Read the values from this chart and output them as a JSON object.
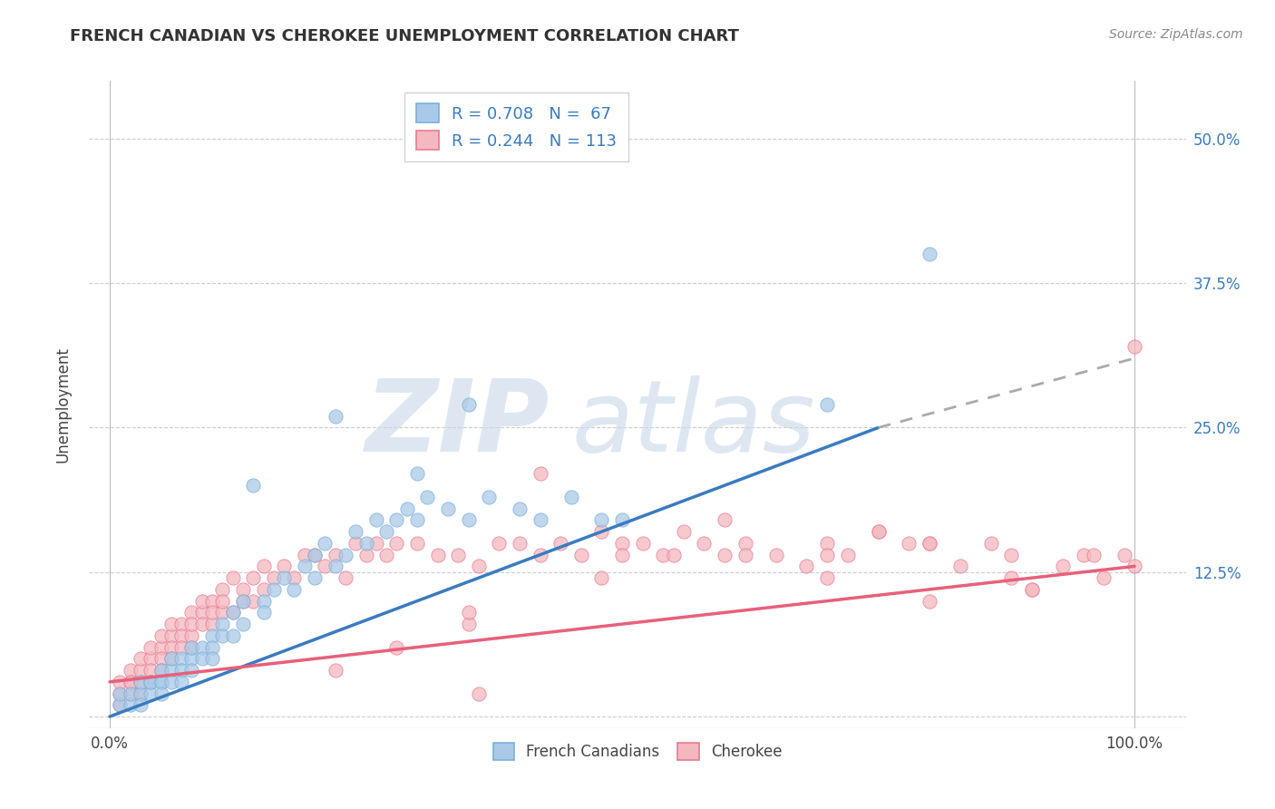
{
  "title": "FRENCH CANADIAN VS CHEROKEE UNEMPLOYMENT CORRELATION CHART",
  "source_text": "Source: ZipAtlas.com",
  "ylabel": "Unemployment",
  "xlim": [
    -2,
    105
  ],
  "ylim": [
    -1,
    55
  ],
  "x_tick_positions": [
    0,
    100
  ],
  "x_tick_labels": [
    "0.0%",
    "100.0%"
  ],
  "y_tick_positions": [
    0,
    12.5,
    25.0,
    37.5,
    50.0
  ],
  "y_tick_labels": [
    "",
    "12.5%",
    "25.0%",
    "37.5%",
    "50.0%"
  ],
  "blue_dot_color": "#aac9e8",
  "blue_dot_edge": "#7ab0d8",
  "pink_dot_color": "#f4b8c0",
  "pink_dot_edge": "#e87a90",
  "blue_line_color": "#3a7bbf",
  "pink_line_color": "#e8607a",
  "dashed_line_color": "#aaaaaa",
  "legend_R_blue": "R = 0.708",
  "legend_N_blue": "N =  67",
  "legend_R_pink": "R = 0.244",
  "legend_N_pink": "N = 113",
  "blue_line_x0": 0,
  "blue_line_y0": 0,
  "blue_line_x1": 75,
  "blue_line_y1": 25,
  "blue_dash_x0": 75,
  "blue_dash_y0": 25,
  "blue_dash_x1": 100,
  "blue_dash_y1": 31,
  "pink_line_x0": 0,
  "pink_line_y0": 3,
  "pink_line_x1": 100,
  "pink_line_y1": 13,
  "blue_scatter_x": [
    1,
    1,
    2,
    2,
    3,
    3,
    3,
    4,
    4,
    4,
    5,
    5,
    5,
    5,
    6,
    6,
    6,
    7,
    7,
    7,
    8,
    8,
    8,
    9,
    9,
    10,
    10,
    10,
    11,
    11,
    12,
    12,
    13,
    13,
    14,
    15,
    15,
    16,
    17,
    18,
    19,
    20,
    20,
    21,
    22,
    23,
    24,
    25,
    26,
    27,
    28,
    29,
    30,
    31,
    33,
    35,
    37,
    40,
    42,
    45,
    48,
    22,
    30,
    35,
    50,
    70,
    80
  ],
  "blue_scatter_y": [
    1,
    2,
    1,
    2,
    2,
    3,
    1,
    3,
    2,
    3,
    3,
    4,
    3,
    2,
    4,
    5,
    3,
    5,
    4,
    3,
    5,
    4,
    6,
    6,
    5,
    7,
    6,
    5,
    8,
    7,
    9,
    7,
    10,
    8,
    20,
    10,
    9,
    11,
    12,
    11,
    13,
    14,
    12,
    15,
    13,
    14,
    16,
    15,
    17,
    16,
    17,
    18,
    17,
    19,
    18,
    17,
    19,
    18,
    17,
    19,
    17,
    26,
    21,
    27,
    17,
    27,
    40
  ],
  "pink_scatter_x": [
    1,
    1,
    1,
    2,
    2,
    2,
    2,
    3,
    3,
    3,
    3,
    4,
    4,
    4,
    4,
    5,
    5,
    5,
    5,
    6,
    6,
    6,
    6,
    7,
    7,
    7,
    8,
    8,
    8,
    8,
    9,
    9,
    9,
    10,
    10,
    10,
    11,
    11,
    11,
    12,
    12,
    13,
    13,
    14,
    14,
    15,
    15,
    16,
    17,
    18,
    19,
    20,
    21,
    22,
    23,
    24,
    25,
    26,
    27,
    28,
    30,
    32,
    34,
    36,
    38,
    40,
    42,
    44,
    46,
    48,
    50,
    52,
    54,
    56,
    58,
    60,
    62,
    65,
    68,
    70,
    72,
    75,
    78,
    80,
    83,
    86,
    88,
    90,
    93,
    95,
    97,
    99,
    100,
    42,
    35,
    50,
    60,
    70,
    80,
    90,
    36,
    28,
    22,
    48,
    55,
    62,
    70,
    75,
    80,
    88,
    96,
    100,
    35
  ],
  "pink_scatter_y": [
    2,
    3,
    1,
    3,
    4,
    2,
    3,
    4,
    3,
    5,
    2,
    5,
    4,
    6,
    3,
    6,
    5,
    7,
    4,
    7,
    6,
    8,
    5,
    8,
    7,
    6,
    9,
    7,
    8,
    6,
    9,
    8,
    10,
    10,
    8,
    9,
    11,
    9,
    10,
    12,
    9,
    11,
    10,
    12,
    10,
    13,
    11,
    12,
    13,
    12,
    14,
    14,
    13,
    14,
    12,
    15,
    14,
    15,
    14,
    15,
    15,
    14,
    14,
    13,
    15,
    15,
    14,
    15,
    14,
    16,
    15,
    15,
    14,
    16,
    15,
    14,
    15,
    14,
    13,
    15,
    14,
    16,
    15,
    15,
    13,
    15,
    14,
    11,
    13,
    14,
    12,
    14,
    13,
    21,
    8,
    14,
    17,
    14,
    15,
    11,
    2,
    6,
    4,
    12,
    14,
    14,
    12,
    16,
    10,
    12,
    14,
    32,
    9
  ]
}
